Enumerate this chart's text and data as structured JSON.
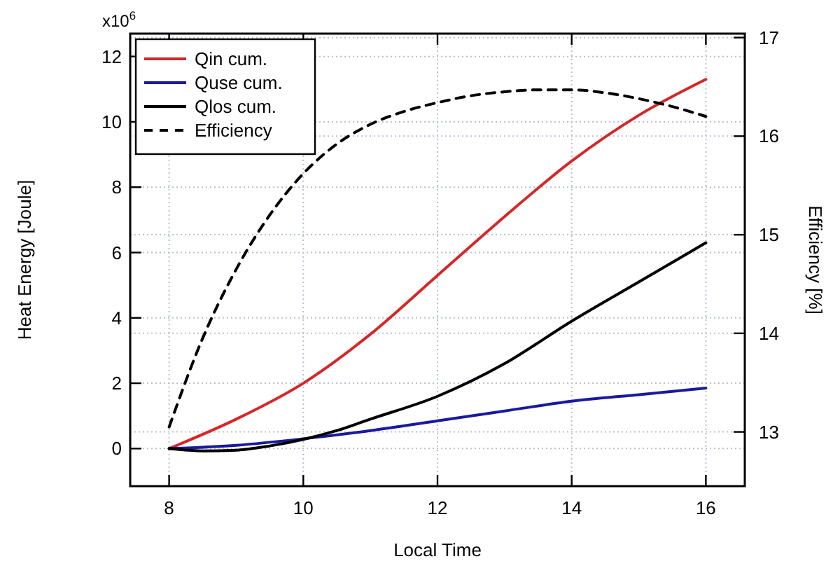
{
  "chart_data": {
    "type": "line",
    "xlabel": "Local Time",
    "ylabel": "Heat Energy [Joule]",
    "y2label": "Efficiency [%]",
    "annotations": [
      "x10$^{6}$"
    ],
    "xlim": [
      7.42,
      16.58
    ],
    "xticks": [
      8,
      10,
      12,
      14,
      16
    ],
    "ylim": [
      -1.15,
      12.7
    ],
    "yticks": [
      0,
      2,
      4,
      6,
      8,
      10,
      12
    ],
    "y2lim": [
      12.45,
      17.04
    ],
    "y2ticks": [
      13,
      14,
      15,
      16,
      17
    ],
    "grid": true,
    "legend": "top left",
    "marker": "none",
    "series": [
      {
        "name": "Qin cum.",
        "color": "#d62728",
        "line_style": "solid",
        "x": [
          8,
          9,
          10,
          11,
          12,
          13,
          14,
          15,
          16
        ],
        "values": [
          0,
          0.9,
          2.0,
          3.5,
          5.3,
          7.1,
          8.8,
          10.2,
          11.3
        ]
      },
      {
        "name": "Quse cum.",
        "color": "#1a1a9c",
        "line_style": "solid",
        "x": [
          8,
          9,
          10,
          11,
          12,
          13,
          14,
          15,
          16
        ],
        "values": [
          0,
          0.1,
          0.3,
          0.55,
          0.85,
          1.15,
          1.45,
          1.65,
          1.85
        ]
      },
      {
        "name": "Qlos cum.",
        "color": "#000000",
        "line_style": "solid",
        "x": [
          8,
          8.5,
          9,
          9.5,
          10,
          10.5,
          11,
          12,
          13,
          14,
          15,
          16
        ],
        "values": [
          0,
          -0.07,
          -0.05,
          0.08,
          0.28,
          0.55,
          0.9,
          1.6,
          2.6,
          3.9,
          5.1,
          6.3
        ]
      },
      {
        "name": "Efficiency",
        "color": "#000000",
        "line_style": "dashed",
        "axis": "y2",
        "x": [
          8,
          8.5,
          9,
          9.5,
          10,
          10.5,
          11,
          11.5,
          12,
          12.5,
          13,
          13.5,
          14,
          14.5,
          15,
          15.5,
          16
        ],
        "values": [
          13.05,
          13.95,
          14.65,
          15.2,
          15.62,
          15.92,
          16.12,
          16.25,
          16.34,
          16.41,
          16.45,
          16.47,
          16.47,
          16.44,
          16.38,
          16.3,
          16.2
        ]
      }
    ]
  }
}
